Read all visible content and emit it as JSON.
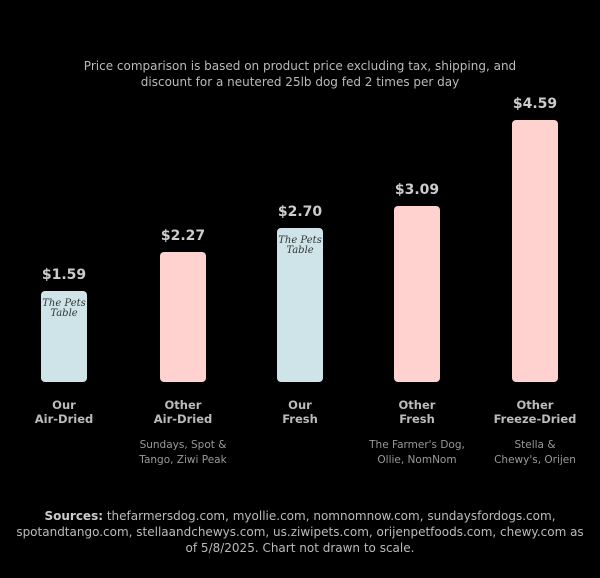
{
  "chart_data": {
    "type": "bar",
    "title": "Price comparison is based on product price excluding tax, shipping, and discount for a neutered 25lb dog fed 2 times per day",
    "categories": [
      "Our\nAir-Dried",
      "Other\nAir-Dried",
      "Our\nFresh",
      "Other\nFresh",
      "Other\nFreeze-Dried"
    ],
    "sublabels": [
      null,
      "Sundays, Spot &\nTango, Ziwi Peak",
      null,
      "The Farmer's Dog,\nOllie, NomNom",
      "Stella &\nChewy's, Orijen"
    ],
    "values": [
      1.59,
      2.27,
      2.7,
      3.09,
      4.59
    ],
    "value_labels": [
      "$1.59",
      "$2.27",
      "$2.70",
      "$3.09",
      "$4.59"
    ],
    "colors": [
      "#cfe4e8",
      "#ffd2d0",
      "#cfe4e8",
      "#ffd2d0",
      "#ffd2d0"
    ],
    "logo_text": "The Pets Table",
    "logo_bars": [
      0,
      2
    ],
    "sources_label": "Sources:",
    "sources_text": "thefarmersdog.com, myollie.com, nomnomnow.com, sundaysfordogs.com, spotandtango.com, stellaandchewys.com, us.ziwipets.com, orijenpetfoods.com, chewy.com as of 5/8/2025. Chart not drawn to scale."
  }
}
